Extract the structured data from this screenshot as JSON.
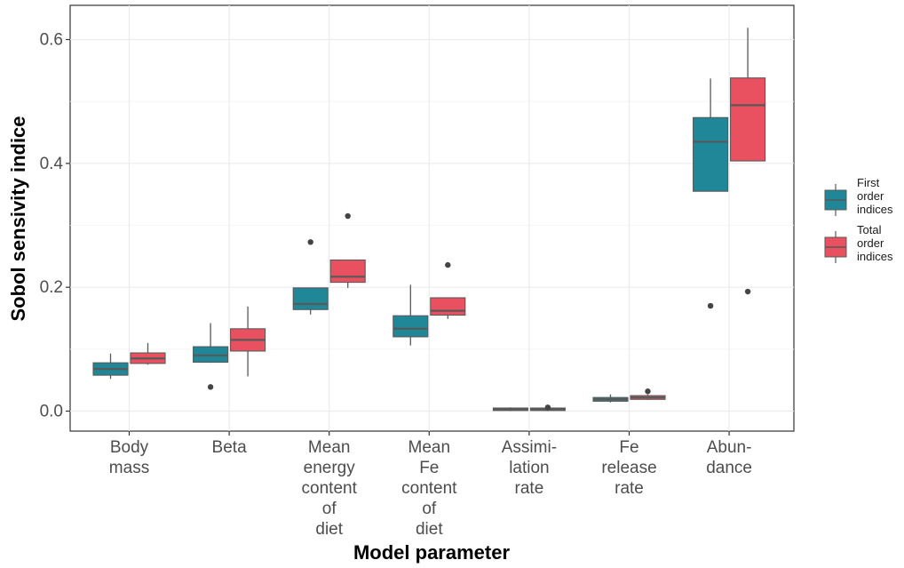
{
  "chart_data": {
    "type": "boxplot",
    "xlabel": "Model parameter",
    "ylabel": "Sobol sensivity indice",
    "ylim": [
      -0.03,
      0.655
    ],
    "yticks": [
      0.0,
      0.2,
      0.4,
      0.6
    ],
    "ytick_labels": [
      "0.0",
      "0.2",
      "0.4",
      "0.6"
    ],
    "grid": true,
    "legend_position": "right",
    "categories": [
      [
        "Body",
        "mass"
      ],
      [
        "Beta"
      ],
      [
        "Mean",
        "energy",
        "content",
        "of",
        "diet"
      ],
      [
        "Mean",
        "Fe",
        "content",
        "of",
        "diet"
      ],
      [
        "Assimi-",
        "lation",
        "rate"
      ],
      [
        "Fe",
        "release",
        "rate"
      ],
      [
        "Abun-",
        "dance"
      ]
    ],
    "series": [
      {
        "name": [
          "First",
          "order",
          "indices"
        ],
        "color": "#1f8797",
        "boxes": [
          {
            "whisker_low": 0.052,
            "q1": 0.058,
            "median": 0.068,
            "q3": 0.078,
            "whisker_high": 0.093,
            "outliers": []
          },
          {
            "whisker_low": 0.078,
            "q1": 0.079,
            "median": 0.09,
            "q3": 0.104,
            "whisker_high": 0.142,
            "outliers": [
              0.039
            ]
          },
          {
            "whisker_low": 0.156,
            "q1": 0.164,
            "median": 0.173,
            "q3": 0.199,
            "whisker_high": 0.199,
            "outliers": [
              0.273
            ]
          },
          {
            "whisker_low": 0.106,
            "q1": 0.12,
            "median": 0.133,
            "q3": 0.154,
            "whisker_high": 0.204,
            "outliers": []
          },
          {
            "whisker_low": 0.0,
            "q1": 0.001,
            "median": 0.003,
            "q3": 0.005,
            "whisker_high": 0.006,
            "outliers": []
          },
          {
            "whisker_low": 0.014,
            "q1": 0.016,
            "median": 0.019,
            "q3": 0.022,
            "whisker_high": 0.027,
            "outliers": []
          },
          {
            "whisker_low": 0.355,
            "q1": 0.355,
            "median": 0.435,
            "q3": 0.474,
            "whisker_high": 0.537,
            "outliers": [
              0.17
            ]
          }
        ]
      },
      {
        "name": [
          "Total",
          "order",
          "indices"
        ],
        "color": "#ea5160",
        "boxes": [
          {
            "whisker_low": 0.075,
            "q1": 0.077,
            "median": 0.085,
            "q3": 0.094,
            "whisker_high": 0.11,
            "outliers": []
          },
          {
            "whisker_low": 0.056,
            "q1": 0.097,
            "median": 0.115,
            "q3": 0.133,
            "whisker_high": 0.169,
            "outliers": []
          },
          {
            "whisker_low": 0.199,
            "q1": 0.208,
            "median": 0.217,
            "q3": 0.244,
            "whisker_high": 0.244,
            "outliers": [
              0.315
            ]
          },
          {
            "whisker_low": 0.149,
            "q1": 0.155,
            "median": 0.162,
            "q3": 0.183,
            "whisker_high": 0.183,
            "outliers": [
              0.236
            ]
          },
          {
            "whisker_low": 0.0,
            "q1": 0.001,
            "median": 0.003,
            "q3": 0.005,
            "whisker_high": 0.006,
            "outliers": [
              0.006
            ]
          },
          {
            "whisker_low": 0.018,
            "q1": 0.019,
            "median": 0.022,
            "q3": 0.025,
            "whisker_high": 0.027,
            "outliers": [
              0.032
            ]
          },
          {
            "whisker_low": 0.404,
            "q1": 0.404,
            "median": 0.494,
            "q3": 0.538,
            "whisker_high": 0.619,
            "outliers": [
              0.193
            ]
          }
        ]
      }
    ]
  }
}
